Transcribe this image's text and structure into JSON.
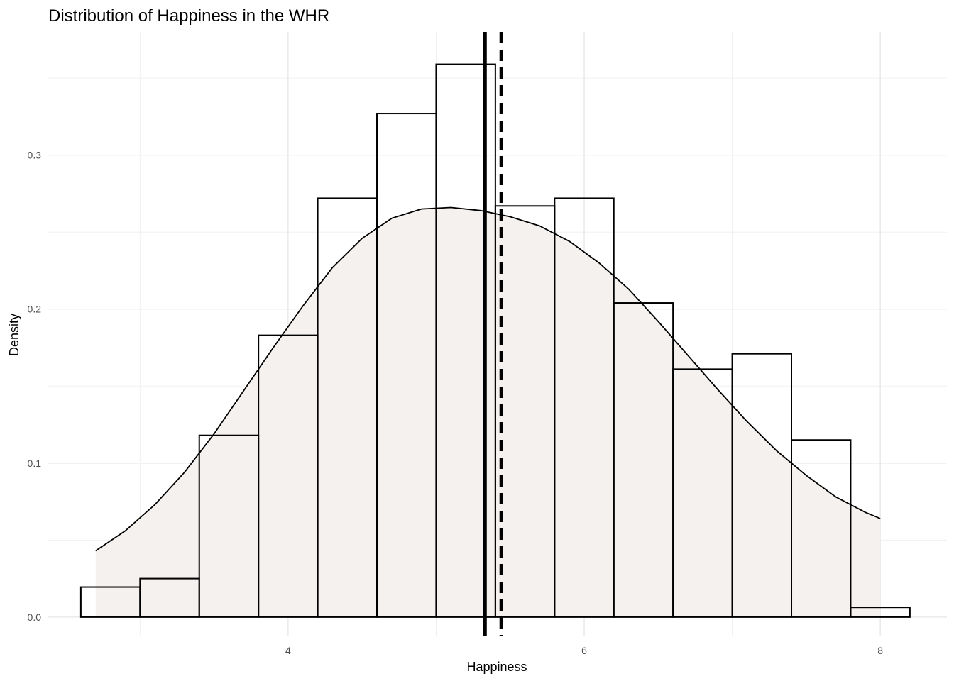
{
  "chart_data": {
    "type": "bar",
    "title": "Distribution of Happiness in the WHR",
    "xlabel": "Happiness",
    "ylabel": "Density",
    "xlim": [
      2.38,
      8.45
    ],
    "ylim": [
      -0.0125,
      0.38
    ],
    "x_ticks": [
      4,
      6,
      8
    ],
    "x_tick_labels": [
      "4",
      "6",
      "8"
    ],
    "y_ticks": [
      0.0,
      0.1,
      0.2,
      0.3
    ],
    "y_tick_labels": [
      "0.0",
      "0.1",
      "0.2",
      "0.3"
    ],
    "grid": true,
    "histogram": {
      "bin_width": 0.4,
      "bin_starts": [
        2.6,
        3.0,
        3.4,
        3.8,
        4.2,
        4.6,
        5.0,
        5.4,
        5.8,
        6.2,
        6.6,
        7.0,
        7.4,
        7.8
      ],
      "values": [
        0.0195,
        0.025,
        0.118,
        0.183,
        0.272,
        0.327,
        0.359,
        0.267,
        0.272,
        0.204,
        0.161,
        0.171,
        0.115,
        0.0063
      ]
    },
    "density_curve": {
      "x": [
        2.7,
        2.9,
        3.1,
        3.3,
        3.5,
        3.7,
        3.9,
        4.1,
        4.3,
        4.5,
        4.7,
        4.9,
        5.1,
        5.3,
        5.5,
        5.7,
        5.9,
        6.1,
        6.3,
        6.5,
        6.7,
        6.9,
        7.1,
        7.3,
        7.5,
        7.7,
        7.9,
        8.0
      ],
      "y": [
        0.043,
        0.056,
        0.073,
        0.094,
        0.119,
        0.147,
        0.175,
        0.202,
        0.227,
        0.246,
        0.259,
        0.265,
        0.266,
        0.264,
        0.26,
        0.254,
        0.244,
        0.23,
        0.213,
        0.192,
        0.17,
        0.148,
        0.127,
        0.108,
        0.092,
        0.078,
        0.068,
        0.064
      ]
    },
    "reference_lines": [
      {
        "value": 5.33,
        "style": "solid"
      },
      {
        "value": 5.44,
        "style": "dashed"
      }
    ]
  }
}
